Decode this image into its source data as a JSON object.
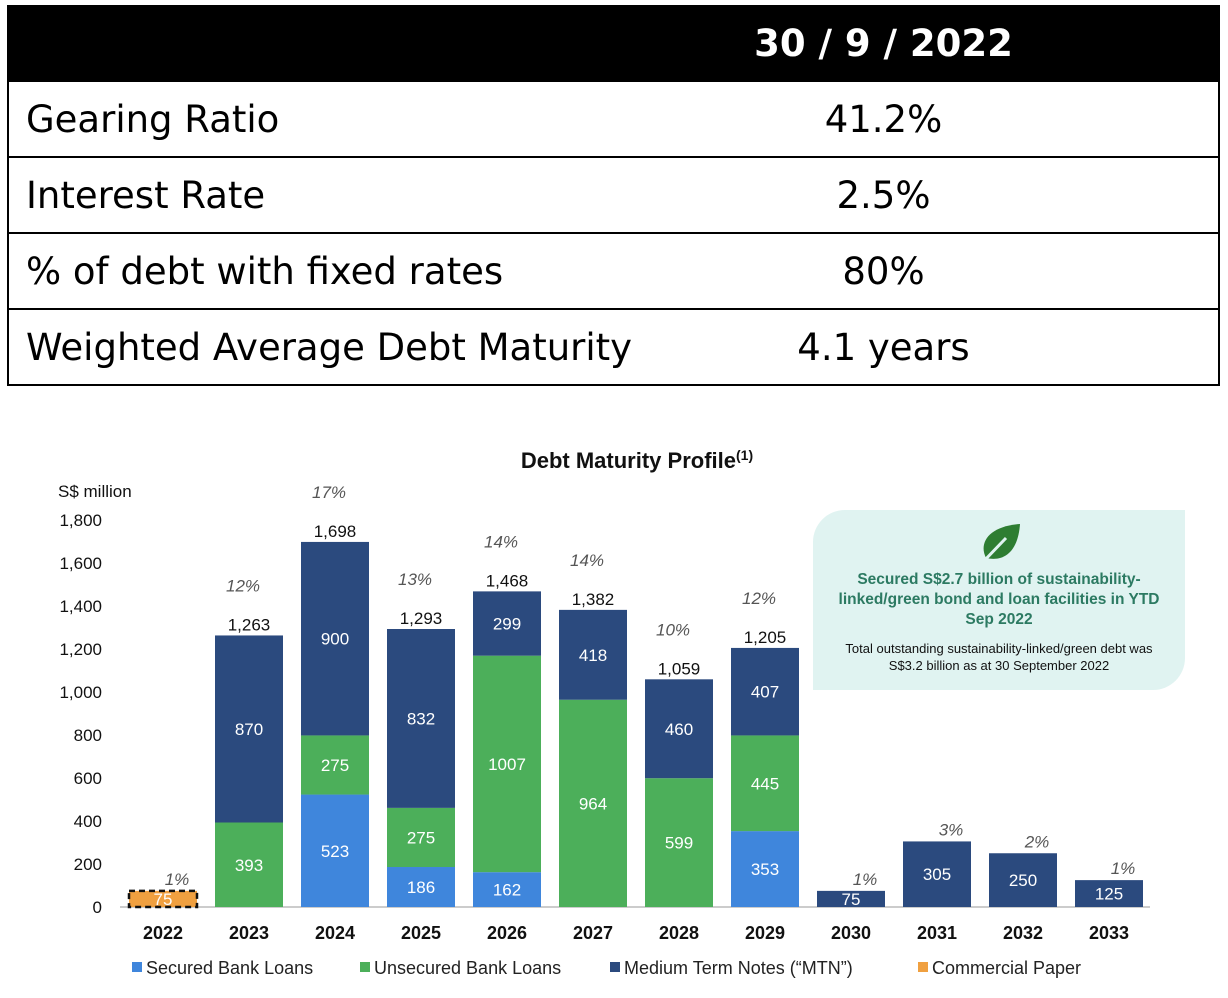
{
  "table": {
    "header": {
      "label": "",
      "value": "30 / 9 / 2022"
    },
    "rows": [
      {
        "label": "Gearing Ratio",
        "value": "41.2%"
      },
      {
        "label": "Interest Rate",
        "value": "2.5%"
      },
      {
        "label": "% of debt with fixed rates",
        "value": "80%"
      },
      {
        "label": "Weighted Average Debt Maturity",
        "value": "4.1 years"
      }
    ]
  },
  "callout": {
    "icon": "leaf-icon",
    "headline": "Secured S$2.7 billion of sustainability-linked/green bond and loan facilities in YTD Sep 2022",
    "text": "Total outstanding sustainability-linked/green debt was S$3.2 billion as at 30 September 2022"
  },
  "chart_data": {
    "type": "bar",
    "stacked": true,
    "title": "Debt Maturity Profile",
    "title_superscript": "(1)",
    "ylabel": "S$ million",
    "ylim": [
      0,
      1800
    ],
    "yticks": [
      "0",
      "200",
      "400",
      "600",
      "800",
      "1,000",
      "1,200",
      "1,400",
      "1,600",
      "1,800"
    ],
    "grid": false,
    "legend_position": "bottom",
    "categories": [
      "2022",
      "2023",
      "2024",
      "2025",
      "2026",
      "2027",
      "2028",
      "2029",
      "2030",
      "2031",
      "2032",
      "2033"
    ],
    "series": [
      {
        "name": "Secured Bank Loans",
        "color": "#3f86dc",
        "values": [
          0,
          0,
          523,
          186,
          162,
          0,
          0,
          353,
          0,
          0,
          0,
          0
        ]
      },
      {
        "name": "Unsecured Bank Loans",
        "color": "#4caf5a",
        "values": [
          0,
          393,
          275,
          275,
          1007,
          964,
          599,
          445,
          0,
          0,
          0,
          0
        ]
      },
      {
        "name": "Medium Term Notes (“MTN”)",
        "color": "#2b4a7e",
        "values": [
          0,
          870,
          900,
          832,
          299,
          418,
          460,
          407,
          75,
          305,
          250,
          125
        ]
      },
      {
        "name": "Commercial Paper",
        "color": "#f0a040",
        "values": [
          75,
          0,
          0,
          0,
          0,
          0,
          0,
          0,
          0,
          0,
          0,
          0
        ]
      }
    ],
    "totals": [
      "",
      "1,263",
      "1,698",
      "1,293",
      "1,468",
      "1,382",
      "1,059",
      "1,205",
      "",
      "",
      "",
      ""
    ],
    "percent_labels": [
      "1%",
      "12%",
      "17%",
      "13%",
      "14%",
      "14%",
      "10%",
      "12%",
      "1%",
      "3%",
      "2%",
      "1%"
    ]
  }
}
